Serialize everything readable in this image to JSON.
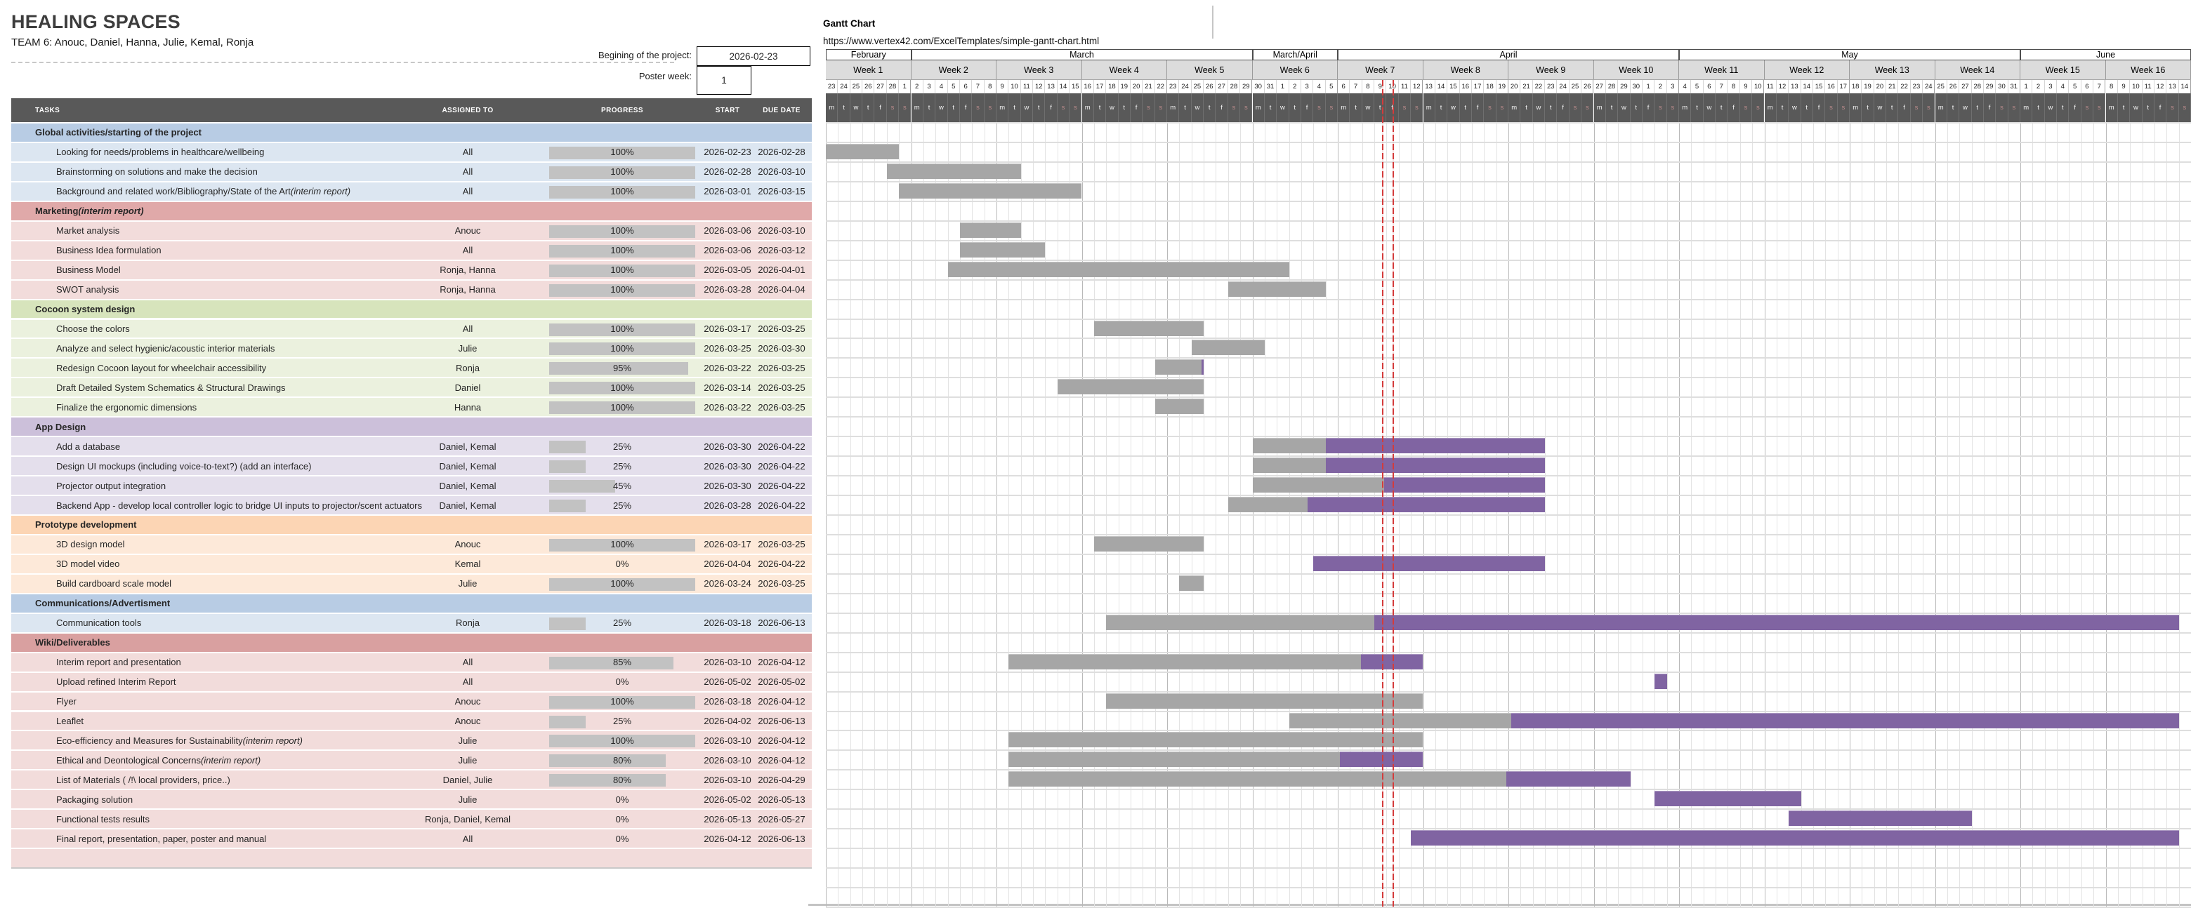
{
  "page": {
    "title": "HEALING SPACES",
    "team": "TEAM 6: Anouc, Daniel, Hanna, Julie, Kemal, Ronja",
    "project_start_label": "Begining of the project:",
    "project_start_value": "2026-02-23",
    "poster_week_label": "Poster week:",
    "poster_week_value": "1"
  },
  "gantt": {
    "title": "Gantt Chart",
    "url": "https://www.vertex42.com/ExcelTemplates/simple-gantt-chart.html",
    "base_date": "2026-02-23",
    "dow": [
      "m",
      "t",
      "w",
      "t",
      "f",
      "s",
      "s"
    ],
    "months": [
      {
        "label": "February",
        "weeks": 1
      },
      {
        "label": "March",
        "weeks": 4
      },
      {
        "label": "March/April",
        "weeks": 1
      },
      {
        "label": "April",
        "weeks": 4
      },
      {
        "label": "May",
        "weeks": 4
      },
      {
        "label": "June",
        "weeks": 2
      }
    ],
    "weeks": [
      {
        "label": "Week 1",
        "days": [
          23,
          24,
          25,
          26,
          27,
          28,
          1
        ]
      },
      {
        "label": "Week 2",
        "days": [
          2,
          3,
          4,
          5,
          6,
          7,
          8
        ]
      },
      {
        "label": "Week 3",
        "days": [
          9,
          10,
          11,
          12,
          13,
          14,
          15
        ]
      },
      {
        "label": "Week 4",
        "days": [
          16,
          17,
          18,
          19,
          20,
          21,
          22
        ]
      },
      {
        "label": "Week 5",
        "days": [
          23,
          24,
          25,
          26,
          27,
          28,
          29
        ]
      },
      {
        "label": "Week 6",
        "days": [
          30,
          31,
          1,
          2,
          3,
          4,
          5
        ]
      },
      {
        "label": "Week 7",
        "days": [
          6,
          7,
          8,
          9,
          10,
          11,
          12
        ]
      },
      {
        "label": "Week 8",
        "days": [
          13,
          14,
          15,
          16,
          17,
          18,
          19
        ]
      },
      {
        "label": "Week 9",
        "days": [
          20,
          21,
          22,
          23,
          24,
          25,
          26
        ]
      },
      {
        "label": "Week 10",
        "days": [
          27,
          28,
          29,
          30,
          1,
          2,
          3
        ]
      },
      {
        "label": "Week 11",
        "days": [
          4,
          5,
          6,
          7,
          8,
          9,
          10
        ]
      },
      {
        "label": "Week 12",
        "days": [
          11,
          12,
          13,
          14,
          15,
          16,
          17
        ]
      },
      {
        "label": "Week 13",
        "days": [
          18,
          19,
          20,
          21,
          22,
          23,
          24
        ]
      },
      {
        "label": "Week 14",
        "days": [
          25,
          26,
          27,
          28,
          29,
          30,
          31
        ]
      },
      {
        "label": "Week 15",
        "days": [
          1,
          2,
          3,
          4,
          5,
          6,
          7
        ]
      },
      {
        "label": "Week 16",
        "days": [
          8,
          9,
          10,
          11,
          12,
          13,
          14
        ]
      }
    ],
    "today_lines_day_index": [
      45.65,
      46.48
    ],
    "colors": {
      "done_bar": "#a6a6a6",
      "remaining_bar": "#8064a2",
      "today_line": "#d43b3b",
      "header_band": "#595959"
    }
  },
  "table": {
    "columns": [
      "TASKS",
      "ASSIGNED TO",
      "PROGRESS",
      "START",
      "DUE DATE"
    ]
  },
  "sections": [
    {
      "name": "Global activities/starting of the project",
      "name_italic": "",
      "header_color": "#b8cce4",
      "row_color": "#dce6f1",
      "tasks": [
        {
          "name": "Looking for needs/problems in healthcare/wellbeing",
          "name_italic": "",
          "assigned": "All",
          "progress": 100,
          "progress_label": "100%",
          "start": "2026-02-23",
          "due": "2026-02-28"
        },
        {
          "name": "Brainstorming on solutions and make the decision",
          "name_italic": "",
          "assigned": "All",
          "progress": 100,
          "progress_label": "100%",
          "start": "2026-02-28",
          "due": "2026-03-10"
        },
        {
          "name": "Background and related work/Bibliography/State of the Art ",
          "name_italic": "(interim report)",
          "assigned": "All",
          "progress": 100,
          "progress_label": "100%",
          "start": "2026-03-01",
          "due": "2026-03-15"
        }
      ]
    },
    {
      "name": "Marketing ",
      "name_italic": "(interim report)",
      "header_color": "#e0a9a9",
      "row_color": "#f2dcdb",
      "tasks": [
        {
          "name": "Market analysis",
          "name_italic": "",
          "assigned": "Anouc",
          "progress": 100,
          "progress_label": "100%",
          "start": "2026-03-06",
          "due": "2026-03-10"
        },
        {
          "name": "Business Idea formulation",
          "name_italic": "",
          "assigned": "All",
          "progress": 100,
          "progress_label": "100%",
          "start": "2026-03-06",
          "due": "2026-03-12"
        },
        {
          "name": "Business Model",
          "name_italic": "",
          "assigned": "Ronja, Hanna",
          "progress": 100,
          "progress_label": "100%",
          "start": "2026-03-05",
          "due": "2026-04-01"
        },
        {
          "name": "SWOT analysis",
          "name_italic": "",
          "assigned": "Ronja, Hanna",
          "progress": 100,
          "progress_label": "100%",
          "start": "2026-03-28",
          "due": "2026-04-04"
        }
      ]
    },
    {
      "name": "Cocoon system design",
      "name_italic": "",
      "header_color": "#d7e4bc",
      "row_color": "#ebf1de",
      "tasks": [
        {
          "name": "Choose the colors",
          "name_italic": "",
          "assigned": "All",
          "progress": 100,
          "progress_label": "100%",
          "start": "2026-03-17",
          "due": "2026-03-25"
        },
        {
          "name": "Analyze and select hygienic/acoustic interior materials",
          "name_italic": "",
          "assigned": "Julie",
          "progress": 100,
          "progress_label": "100%",
          "start": "2026-03-25",
          "due": "2026-03-30"
        },
        {
          "name": "Redesign Cocoon layout for wheelchair accessibility",
          "name_italic": "",
          "assigned": "Ronja",
          "progress": 95,
          "progress_label": "95%",
          "start": "2026-03-22",
          "due": "2026-03-25"
        },
        {
          "name": "Draft Detailed System Schematics & Structural Drawings",
          "name_italic": "",
          "assigned": "Daniel",
          "progress": 100,
          "progress_label": "100%",
          "start": "2026-03-14",
          "due": "2026-03-25"
        },
        {
          "name": "Finalize the ergonomic dimensions",
          "name_italic": "",
          "assigned": "Hanna",
          "progress": 100,
          "progress_label": "100%",
          "start": "2026-03-22",
          "due": "2026-03-25"
        }
      ]
    },
    {
      "name": "App Design",
      "name_italic": "",
      "header_color": "#ccc0da",
      "row_color": "#e4dfec",
      "tasks": [
        {
          "name": "Add a database",
          "name_italic": "",
          "assigned": "Daniel, Kemal",
          "progress": 25,
          "progress_label": "25%",
          "start": "2026-03-30",
          "due": "2026-04-22"
        },
        {
          "name": "Design UI mockups (including voice-to-text?) (add an interface)",
          "name_italic": "",
          "assigned": "Daniel, Kemal",
          "progress": 25,
          "progress_label": "25%",
          "start": "2026-03-30",
          "due": "2026-04-22"
        },
        {
          "name": "Projector output integration",
          "name_italic": "",
          "assigned": "Daniel, Kemal",
          "progress": 45,
          "progress_label": "45%",
          "start": "2026-03-30",
          "due": "2026-04-22"
        },
        {
          "name": "Backend App - develop local controller logic to bridge UI inputs to projector/scent actuators",
          "name_italic": "",
          "assigned": "Daniel, Kemal",
          "progress": 25,
          "progress_label": "25%",
          "start": "2026-03-28",
          "due": "2026-04-22"
        }
      ]
    },
    {
      "name": "Prototype development",
      "name_italic": "",
      "header_color": "#fcd5b4",
      "row_color": "#fde9d9",
      "tasks": [
        {
          "name": "3D design model",
          "name_italic": "",
          "assigned": "Anouc",
          "progress": 100,
          "progress_label": "100%",
          "start": "2026-03-17",
          "due": "2026-03-25"
        },
        {
          "name": "3D model video",
          "name_italic": "",
          "assigned": "Kemal",
          "progress": 0,
          "progress_label": "0%",
          "start": "2026-04-04",
          "due": "2026-04-22"
        },
        {
          "name": "Build cardboard scale model",
          "name_italic": "",
          "assigned": "Julie",
          "progress": 100,
          "progress_label": "100%",
          "start": "2026-03-24",
          "due": "2026-03-25"
        }
      ]
    },
    {
      "name": "Communications/Advertisment",
      "name_italic": "",
      "header_color": "#b8cce4",
      "row_color": "#dce6f1",
      "tasks": [
        {
          "name": "Communication tools",
          "name_italic": "",
          "assigned": "Ronja",
          "progress": 25,
          "progress_label": "25%",
          "start": "2026-03-18",
          "due": "2026-06-13"
        }
      ]
    },
    {
      "name": "Wiki/Deliverables",
      "name_italic": "",
      "header_color": "#d9a0a0",
      "row_color": "#f2dcdb",
      "tasks": [
        {
          "name": "Interim report and presentation",
          "name_italic": "",
          "assigned": "All",
          "progress": 85,
          "progress_label": "85%",
          "start": "2026-03-10",
          "due": "2026-04-12"
        },
        {
          "name": "Upload refined Interim Report",
          "name_italic": "",
          "assigned": "All",
          "progress": 0,
          "progress_label": "0%",
          "start": "2026-05-02",
          "due": "2026-05-02"
        },
        {
          "name": "Flyer",
          "name_italic": "",
          "assigned": "Anouc",
          "progress": 100,
          "progress_label": "100%",
          "start": "2026-03-18",
          "due": "2026-04-12"
        },
        {
          "name": "Leaflet",
          "name_italic": "",
          "assigned": "Anouc",
          "progress": 25,
          "progress_label": "25%",
          "start": "2026-04-02",
          "due": "2026-06-13"
        },
        {
          "name": "Eco-efficiency and Measures for Sustainability ",
          "name_italic": "(interim report)",
          "assigned": "Julie",
          "progress": 100,
          "progress_label": "100%",
          "start": "2026-03-10",
          "due": "2026-04-12"
        },
        {
          "name": "Ethical and Deontological Concerns ",
          "name_italic": "(interim report)",
          "assigned": "Julie",
          "progress": 80,
          "progress_label": "80%",
          "start": "2026-03-10",
          "due": "2026-04-12"
        },
        {
          "name": "List of Materials ( /!\\ local providers, price..)",
          "name_italic": "",
          "assigned": "Daniel, Julie",
          "progress": 80,
          "progress_label": "80%",
          "start": "2026-03-10",
          "due": "2026-04-29"
        },
        {
          "name": "Packaging solution",
          "name_italic": "",
          "assigned": "Julie",
          "progress": 0,
          "progress_label": "0%",
          "start": "2026-05-02",
          "due": "2026-05-13"
        },
        {
          "name": "Functional tests results",
          "name_italic": "",
          "assigned": "Ronja, Daniel, Kemal",
          "progress": 0,
          "progress_label": "0%",
          "start": "2026-05-13",
          "due": "2026-05-27"
        },
        {
          "name": "Final report, presentation, paper, poster and manual",
          "name_italic": "",
          "assigned": "All",
          "progress": 0,
          "progress_label": "0%",
          "start": "2026-04-12",
          "due": "2026-06-13"
        }
      ]
    }
  ]
}
